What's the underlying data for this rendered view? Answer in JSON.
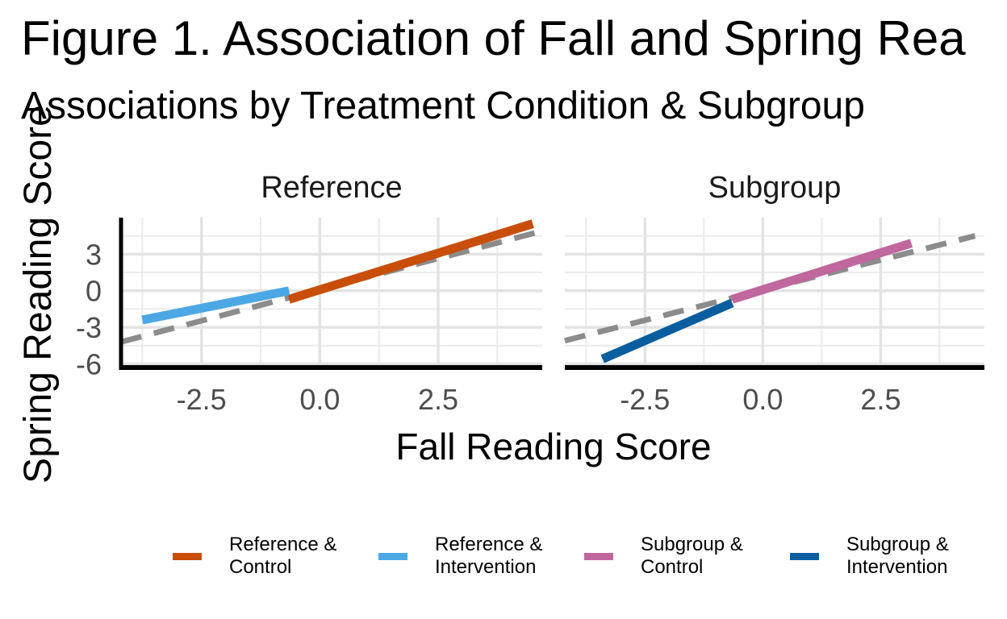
{
  "chart_data": {
    "type": "line",
    "title": "Figure 1. Association of Fall and Spring Rea",
    "subtitle": "Associations by Treatment Condition & Subgroup",
    "xlabel": "Fall Reading Score",
    "ylabel": "Spring Reading Score",
    "xlim": [
      -4.2,
      4.7
    ],
    "ylim": [
      -6.3,
      6
    ],
    "x_ticks": [
      "-2.5",
      "0.0",
      "2.5"
    ],
    "x_tick_values": [
      -2.5,
      0.0,
      2.5
    ],
    "y_ticks": [
      "3",
      "0",
      "-3",
      "-6"
    ],
    "y_tick_values": [
      3,
      0,
      -3,
      -6
    ],
    "grid": true,
    "legend_position": "bottom",
    "panels": [
      {
        "label": "Reference",
        "series": [
          {
            "name": "Reference & Control",
            "color": "#C84E0A",
            "x": [
              -0.65,
              4.5
            ],
            "y": [
              -0.7,
              5.5
            ]
          },
          {
            "name": "Reference & Intervention",
            "color": "#4CA8E4",
            "x": [
              -3.75,
              -0.65
            ],
            "y": [
              -2.4,
              0
            ]
          }
        ],
        "reference_line": {
          "style": "dashed",
          "color": "#8c8c8c",
          "x": [
            -4.2,
            4.7
          ],
          "y": [
            -4.2,
            4.9
          ]
        }
      },
      {
        "label": "Subgroup",
        "series": [
          {
            "name": "Subgroup & Control",
            "color": "#C0679E",
            "x": [
              -0.65,
              3.15
            ],
            "y": [
              -0.7,
              3.9
            ]
          },
          {
            "name": "Subgroup & Intervention",
            "color": "#0A5D9E",
            "x": [
              -3.4,
              -0.65
            ],
            "y": [
              -5.6,
              -1.0
            ]
          }
        ],
        "reference_line": {
          "style": "dashed",
          "color": "#8c8c8c",
          "x": [
            -4.2,
            4.5
          ],
          "y": [
            -4.1,
            4.5
          ]
        }
      }
    ]
  },
  "legend": {
    "items": [
      {
        "label": "Reference &\nControl",
        "color": "#C84E0A"
      },
      {
        "label": "Reference &\nIntervention",
        "color": "#4CA8E4"
      },
      {
        "label": "Subgroup &\nControl",
        "color": "#C0679E"
      },
      {
        "label": "Subgroup &\nIntervention",
        "color": "#0A5D9E"
      }
    ]
  }
}
